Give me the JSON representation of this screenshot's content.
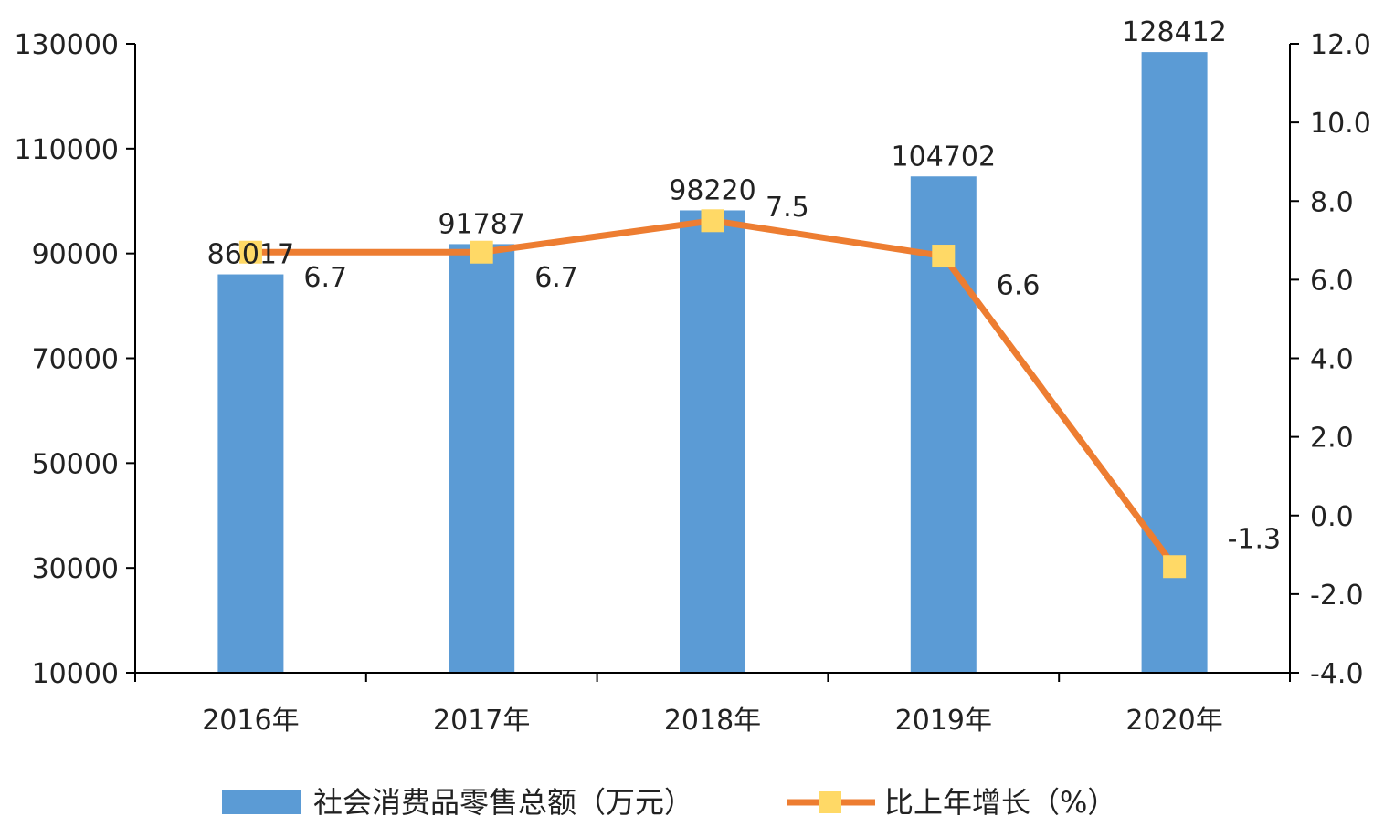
{
  "chart_data": {
    "type": "bar",
    "categories": [
      "2016年",
      "2017年",
      "2018年",
      "2019年",
      "2020年"
    ],
    "series": [
      {
        "name": "社会消费品零售总额（万元）",
        "type": "bar",
        "axis": "left",
        "values": [
          86017,
          91787,
          98220,
          104702,
          128412
        ],
        "labels": [
          "86017",
          "91787",
          "98220",
          "104702",
          "128412"
        ]
      },
      {
        "name": "比上年增长（%）",
        "type": "line",
        "axis": "right",
        "values": [
          6.7,
          6.7,
          7.5,
          6.6,
          -1.3
        ],
        "labels": [
          "6.7",
          "6.7",
          "7.5",
          "6.6",
          "-1.3"
        ]
      }
    ],
    "y_left": {
      "min": 10000,
      "max": 130000,
      "ticks": [
        10000,
        30000,
        50000,
        70000,
        90000,
        110000,
        130000
      ],
      "tick_labels": [
        "10000",
        "30000",
        "50000",
        "70000",
        "90000",
        "110000",
        "130000"
      ]
    },
    "y_right": {
      "min": -4.0,
      "max": 12.0,
      "ticks": [
        -4.0,
        -2.0,
        0.0,
        2.0,
        4.0,
        6.0,
        8.0,
        10.0,
        12.0
      ],
      "tick_labels": [
        "-4.0",
        "-2.0",
        "0.0",
        "2.0",
        "4.0",
        "6.0",
        "8.0",
        "10.0",
        "12.0"
      ]
    },
    "grid": false,
    "legend_position": "bottom",
    "colors": {
      "bar": "#5B9BD5",
      "line": "#ED7D31",
      "marker": "#FFD966",
      "axis": "#000000"
    }
  }
}
